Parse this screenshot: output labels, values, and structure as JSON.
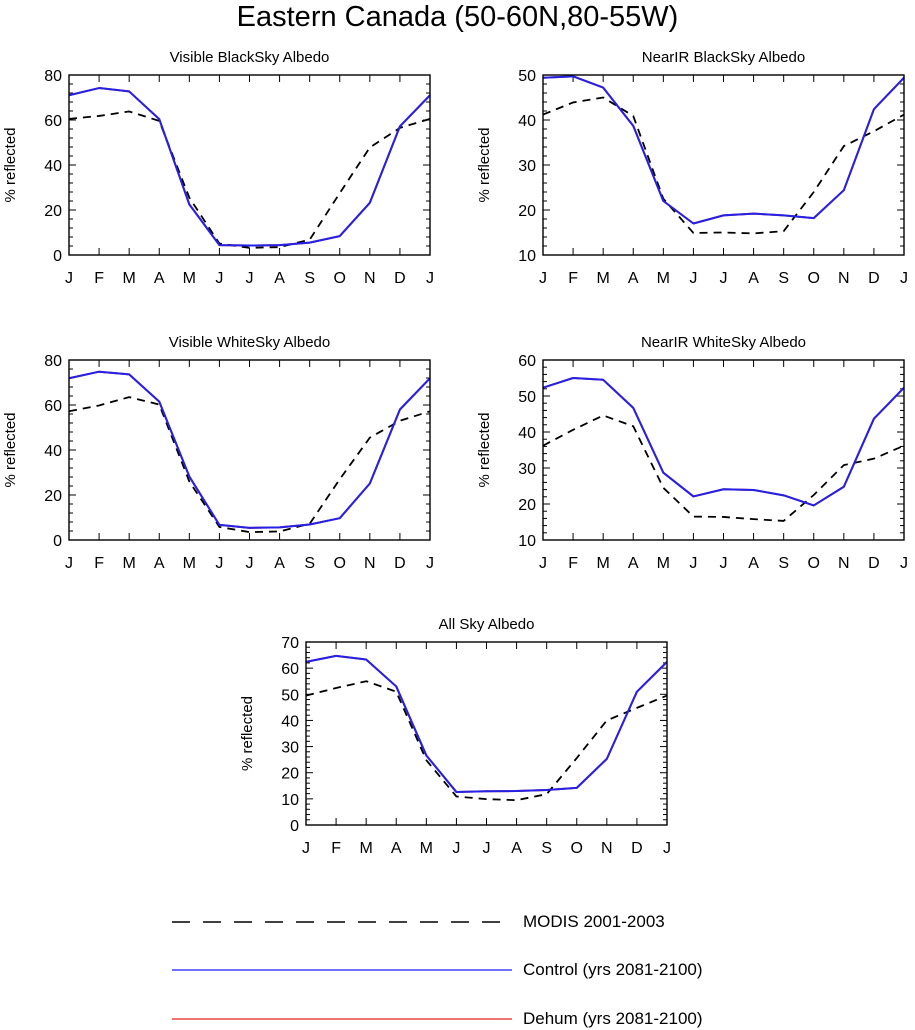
{
  "title": "Eastern Canada (50-60N,80-55W)",
  "chart_data": [
    {
      "type": "line",
      "title": "Visible BlackSky Albedo",
      "ylabel": "% reflected",
      "categories": [
        "J",
        "F",
        "M",
        "A",
        "M",
        "J",
        "J",
        "A",
        "S",
        "O",
        "N",
        "D",
        "J"
      ],
      "ylim": [
        0,
        80
      ],
      "yticks": [
        0,
        20,
        40,
        60,
        80
      ],
      "series": [
        {
          "name": "MODIS 2001-2003",
          "values": [
            60.5,
            61.8,
            63.8,
            59.6,
            25.5,
            5.1,
            3.2,
            3.5,
            6.8,
            27.5,
            47.8,
            56.5,
            60.5
          ]
        },
        {
          "name": "Control (yrs 2081-2100)",
          "values": [
            71.0,
            74.2,
            72.7,
            60.4,
            22.5,
            4.4,
            4.2,
            4.4,
            5.5,
            8.4,
            23.2,
            57.2,
            71.0
          ]
        },
        {
          "name": "Dehum (yrs 2081-2100)",
          "values": [
            71.0,
            74.2,
            72.7,
            60.4,
            22.5,
            4.4,
            4.2,
            4.4,
            5.5,
            8.4,
            23.2,
            57.2,
            71.0
          ]
        }
      ]
    },
    {
      "type": "line",
      "title": "NearIR BlackSky Albedo",
      "ylabel": "% reflected",
      "categories": [
        "J",
        "F",
        "M",
        "A",
        "M",
        "J",
        "J",
        "A",
        "S",
        "O",
        "N",
        "D",
        "J"
      ],
      "ylim": [
        10,
        50
      ],
      "yticks": [
        10,
        20,
        30,
        40,
        50
      ],
      "series": [
        {
          "name": "MODIS 2001-2003",
          "values": [
            41.2,
            43.9,
            45.0,
            40.9,
            22.5,
            14.9,
            15.0,
            14.8,
            15.3,
            24.0,
            34.2,
            37.5,
            41.2
          ]
        },
        {
          "name": "Control (yrs 2081-2100)",
          "values": [
            49.4,
            49.7,
            47.2,
            38.7,
            22.0,
            17.0,
            18.8,
            19.2,
            18.8,
            18.2,
            24.4,
            42.4,
            49.4
          ]
        },
        {
          "name": "Dehum (yrs 2081-2100)",
          "values": [
            49.4,
            49.7,
            47.2,
            38.7,
            22.0,
            17.0,
            18.8,
            19.2,
            18.8,
            18.2,
            24.4,
            42.4,
            49.4
          ]
        }
      ]
    },
    {
      "type": "line",
      "title": "Visible WhiteSky Albedo",
      "ylabel": "% reflected",
      "categories": [
        "J",
        "F",
        "M",
        "A",
        "M",
        "J",
        "J",
        "A",
        "S",
        "O",
        "N",
        "D",
        "J"
      ],
      "ylim": [
        0,
        80
      ],
      "yticks": [
        0,
        20,
        40,
        60,
        80
      ],
      "series": [
        {
          "name": "MODIS 2001-2003",
          "values": [
            57.2,
            59.8,
            63.5,
            60.2,
            26.0,
            5.8,
            3.5,
            3.8,
            7.2,
            27.0,
            45.5,
            53.0,
            57.2
          ]
        },
        {
          "name": "Control (yrs 2081-2100)",
          "values": [
            71.9,
            74.8,
            73.6,
            61.5,
            28.2,
            6.7,
            5.4,
            5.6,
            6.9,
            9.7,
            25.1,
            58.0,
            71.9
          ]
        },
        {
          "name": "Dehum (yrs 2081-2100)",
          "values": [
            71.9,
            74.8,
            73.6,
            61.5,
            28.2,
            6.7,
            5.4,
            5.6,
            6.9,
            9.7,
            25.1,
            58.0,
            71.9
          ]
        }
      ]
    },
    {
      "type": "line",
      "title": "NearIR WhiteSky Albedo",
      "ylabel": "% reflected",
      "categories": [
        "J",
        "F",
        "M",
        "A",
        "M",
        "J",
        "J",
        "A",
        "S",
        "O",
        "N",
        "D",
        "J"
      ],
      "ylim": [
        10,
        60
      ],
      "yticks": [
        10,
        20,
        30,
        40,
        50,
        60
      ],
      "series": [
        {
          "name": "MODIS 2001-2003",
          "values": [
            36.2,
            40.6,
            44.6,
            41.6,
            24.5,
            16.5,
            16.4,
            15.8,
            15.3,
            22.5,
            30.8,
            32.6,
            36.2
          ]
        },
        {
          "name": "Control (yrs 2081-2100)",
          "values": [
            52.3,
            55.0,
            54.5,
            46.7,
            28.7,
            22.1,
            24.1,
            23.9,
            22.4,
            19.6,
            24.8,
            43.7,
            52.3
          ]
        },
        {
          "name": "Dehum (yrs 2081-2100)",
          "values": [
            52.3,
            55.0,
            54.5,
            46.7,
            28.7,
            22.1,
            24.1,
            23.9,
            22.4,
            19.6,
            24.8,
            43.7,
            52.3
          ]
        }
      ]
    },
    {
      "type": "line",
      "title": "All Sky Albedo",
      "ylabel": "% reflected",
      "categories": [
        "J",
        "F",
        "M",
        "A",
        "M",
        "J",
        "J",
        "A",
        "S",
        "O",
        "N",
        "D",
        "J"
      ],
      "ylim": [
        0,
        70
      ],
      "yticks": [
        0,
        10,
        20,
        30,
        40,
        50,
        60,
        70
      ],
      "series": [
        {
          "name": "MODIS 2001-2003",
          "values": [
            49.5,
            52.4,
            55.0,
            51.0,
            24.8,
            10.9,
            9.9,
            9.5,
            11.8,
            25.6,
            40.0,
            44.8,
            49.5
          ]
        },
        {
          "name": "Control (yrs 2081-2100)",
          "values": [
            62.4,
            64.7,
            63.3,
            53.0,
            26.6,
            12.6,
            12.9,
            13.0,
            13.4,
            14.2,
            25.3,
            51.0,
            62.4
          ]
        },
        {
          "name": "Dehum (yrs 2081-2100)",
          "values": [
            62.4,
            64.7,
            63.3,
            53.0,
            26.6,
            12.6,
            12.9,
            13.0,
            13.4,
            14.2,
            25.3,
            51.0,
            62.4
          ]
        }
      ]
    }
  ],
  "legend": {
    "items": [
      {
        "label": "MODIS 2001-2003",
        "color": "#000000",
        "style": "dashed"
      },
      {
        "label": "Control (yrs 2081-2100)",
        "color": "#1a1aff",
        "style": "solid"
      },
      {
        "label": "Dehum (yrs 2081-2100)",
        "color": "#e8221c",
        "style": "solid"
      }
    ]
  },
  "colors": {
    "modis": "#000000",
    "control": "#2222e8",
    "dehum": "#e8221c"
  }
}
